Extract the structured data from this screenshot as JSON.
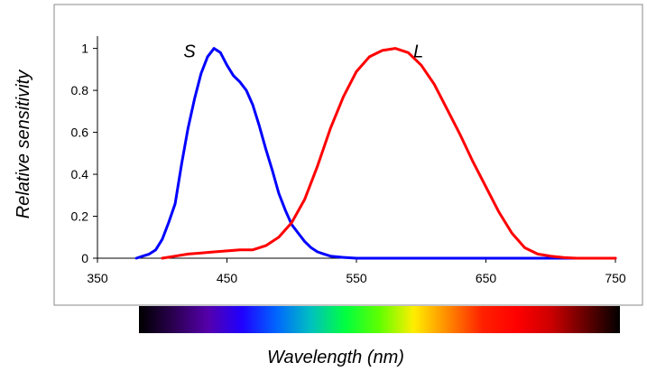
{
  "chart_data": {
    "type": "line",
    "xlabel": "Wavelength (nm)",
    "ylabel": "Relative sensitivity",
    "xlim": [
      350,
      750
    ],
    "ylim": [
      0,
      1.05
    ],
    "x_ticks": [
      "350",
      "450",
      "550",
      "650",
      "750"
    ],
    "y_ticks": [
      "0",
      "0.2",
      "0.4",
      "0.6",
      "0.8",
      "1"
    ],
    "grid": false,
    "legend": "none",
    "series": [
      {
        "name": "S",
        "color": "#0000ff",
        "points": [
          [
            380,
            0.0
          ],
          [
            385,
            0.01
          ],
          [
            390,
            0.02
          ],
          [
            395,
            0.04
          ],
          [
            400,
            0.09
          ],
          [
            405,
            0.17
          ],
          [
            410,
            0.26
          ],
          [
            415,
            0.45
          ],
          [
            420,
            0.62
          ],
          [
            425,
            0.76
          ],
          [
            430,
            0.88
          ],
          [
            435,
            0.96
          ],
          [
            440,
            1.0
          ],
          [
            445,
            0.98
          ],
          [
            450,
            0.92
          ],
          [
            455,
            0.87
          ],
          [
            460,
            0.84
          ],
          [
            465,
            0.8
          ],
          [
            470,
            0.73
          ],
          [
            475,
            0.63
          ],
          [
            480,
            0.52
          ],
          [
            485,
            0.42
          ],
          [
            490,
            0.31
          ],
          [
            495,
            0.23
          ],
          [
            500,
            0.16
          ],
          [
            505,
            0.12
          ],
          [
            510,
            0.08
          ],
          [
            515,
            0.05
          ],
          [
            520,
            0.03
          ],
          [
            525,
            0.02
          ],
          [
            530,
            0.01
          ],
          [
            540,
            0.004
          ],
          [
            550,
            0.0
          ],
          [
            750,
            0.0
          ]
        ]
      },
      {
        "name": "L",
        "color": "#ff0000",
        "points": [
          [
            400,
            0.0
          ],
          [
            410,
            0.01
          ],
          [
            420,
            0.02
          ],
          [
            430,
            0.025
          ],
          [
            440,
            0.03
          ],
          [
            450,
            0.035
          ],
          [
            460,
            0.04
          ],
          [
            470,
            0.04
          ],
          [
            480,
            0.06
          ],
          [
            490,
            0.1
          ],
          [
            500,
            0.17
          ],
          [
            510,
            0.28
          ],
          [
            520,
            0.44
          ],
          [
            530,
            0.62
          ],
          [
            540,
            0.77
          ],
          [
            550,
            0.89
          ],
          [
            560,
            0.96
          ],
          [
            570,
            0.99
          ],
          [
            580,
            1.0
          ],
          [
            590,
            0.98
          ],
          [
            600,
            0.92
          ],
          [
            610,
            0.83
          ],
          [
            620,
            0.71
          ],
          [
            630,
            0.59
          ],
          [
            640,
            0.46
          ],
          [
            650,
            0.34
          ],
          [
            660,
            0.22
          ],
          [
            670,
            0.12
          ],
          [
            680,
            0.05
          ],
          [
            690,
            0.02
          ],
          [
            700,
            0.01
          ],
          [
            710,
            0.003
          ],
          [
            720,
            0.0
          ],
          [
            750,
            0.0
          ]
        ]
      }
    ],
    "annotations": [
      {
        "text": "S",
        "x": 442,
        "y": 1.0
      },
      {
        "text": "L",
        "x": 577,
        "y": 1.0
      }
    ]
  },
  "colors": {
    "frame": "#888888",
    "spectrum_stops": [
      "#000000",
      "#2a0050",
      "#5500aa",
      "#2000ff",
      "#0066ff",
      "#00c0c0",
      "#00ff40",
      "#60ff00",
      "#ffee00",
      "#ff8800",
      "#ff2000",
      "#ff0000",
      "#cc0000",
      "#660000",
      "#000000"
    ]
  }
}
